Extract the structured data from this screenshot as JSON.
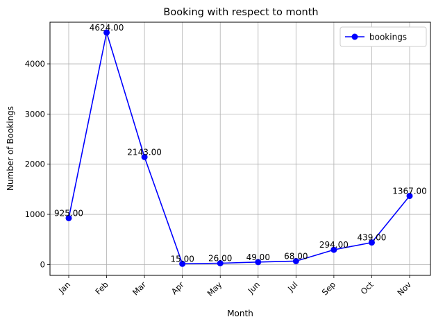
{
  "chart_data": {
    "type": "line",
    "title": "Booking with respect to month",
    "xlabel": "Month",
    "ylabel": "Number of Bookings",
    "categories": [
      "Jan",
      "Feb",
      "Mar",
      "Apr",
      "May",
      "Jun",
      "Jul",
      "Sep",
      "Oct",
      "Nov"
    ],
    "series": [
      {
        "name": "bookings",
        "values": [
          925,
          4624,
          2143,
          15,
          26,
          49,
          68,
          294,
          439,
          1367
        ],
        "color": "#0000ff",
        "marker": "circle"
      }
    ],
    "data_labels": [
      "925.00",
      "4624.00",
      "2143.00",
      "15.00",
      "26.00",
      "49.00",
      "68.00",
      "294.00",
      "439.00",
      "1367.00"
    ],
    "y_ticks": [
      0,
      1000,
      2000,
      3000,
      4000
    ],
    "ylim": [
      -216,
      4830
    ],
    "grid": true,
    "legend_position": "upper-right",
    "x_tick_rotation": 45
  }
}
